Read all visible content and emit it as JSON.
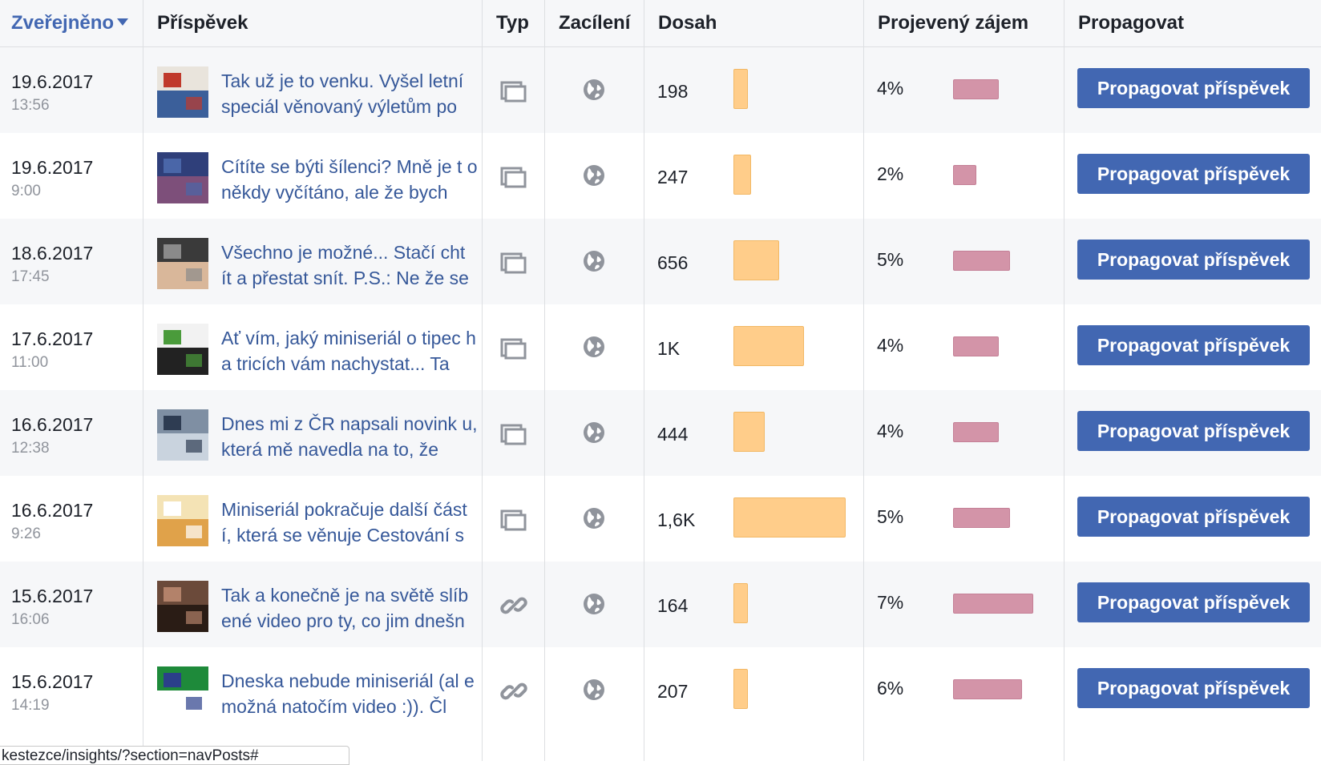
{
  "columns": {
    "published": "Zveřejněno",
    "post": "Příspěvek",
    "type": "Typ",
    "targeting": "Zacílení",
    "reach": "Dosah",
    "engagement": "Projevený zájem",
    "promote": "Propagovat"
  },
  "promote_label": "Propagovat příspěvek",
  "status_url": "kestezce/insights/?section=navPosts#",
  "colors": {
    "header_bg": "#f6f7f9",
    "link": "#4267b2",
    "reach_bar": "#ffcd8a",
    "engagement_bar": "#d394a8",
    "button": "#4267b2"
  },
  "rows": [
    {
      "date": "19.6.2017",
      "time": "13:56",
      "text": "Tak už je to venku. Vyšel letní speciál věnovaný výletům po",
      "type_icon": "album-icon",
      "reach": "198",
      "reach_value": 198,
      "engagement": "4%",
      "engagement_value": 4
    },
    {
      "date": "19.6.2017",
      "time": "9:00",
      "text": "Cítíte se býti šílenci? Mně je t o někdy vyčítáno, ale že bych",
      "type_icon": "album-icon",
      "reach": "247",
      "reach_value": 247,
      "engagement": "2%",
      "engagement_value": 2
    },
    {
      "date": "18.6.2017",
      "time": "17:45",
      "text": "Všechno je možné... Stačí cht ít a přestat snít. P.S.: Ne že se",
      "type_icon": "album-icon",
      "reach": "656",
      "reach_value": 656,
      "engagement": "5%",
      "engagement_value": 5
    },
    {
      "date": "17.6.2017",
      "time": "11:00",
      "text": "Ať vím, jaký miniseriál o tipec h a tricích vám nachystat... Ta",
      "type_icon": "album-icon",
      "reach": "1K",
      "reach_value": 1000,
      "engagement": "4%",
      "engagement_value": 4
    },
    {
      "date": "16.6.2017",
      "time": "12:38",
      "text": "Dnes mi z ČR napsali novink u, která mě navedla na to, že",
      "type_icon": "album-icon",
      "reach": "444",
      "reach_value": 444,
      "engagement": "4%",
      "engagement_value": 4
    },
    {
      "date": "16.6.2017",
      "time": "9:26",
      "text": "Miniseriál pokračuje další část í, která se věnuje Cestování s",
      "type_icon": "album-icon",
      "reach": "1,6K",
      "reach_value": 1600,
      "engagement": "5%",
      "engagement_value": 5
    },
    {
      "date": "15.6.2017",
      "time": "16:06",
      "text": "Tak a konečně je na světě slíb ené video pro ty, co jim dnešn",
      "type_icon": "link-icon",
      "reach": "164",
      "reach_value": 164,
      "engagement": "7%",
      "engagement_value": 7
    },
    {
      "date": "15.6.2017",
      "time": "14:19",
      "text": "Dneska nebude miniseriál (al e možná natočím video :)). Čl",
      "type_icon": "link-icon",
      "reach": "207",
      "reach_value": 207,
      "engagement": "6%",
      "engagement_value": 6
    }
  ]
}
